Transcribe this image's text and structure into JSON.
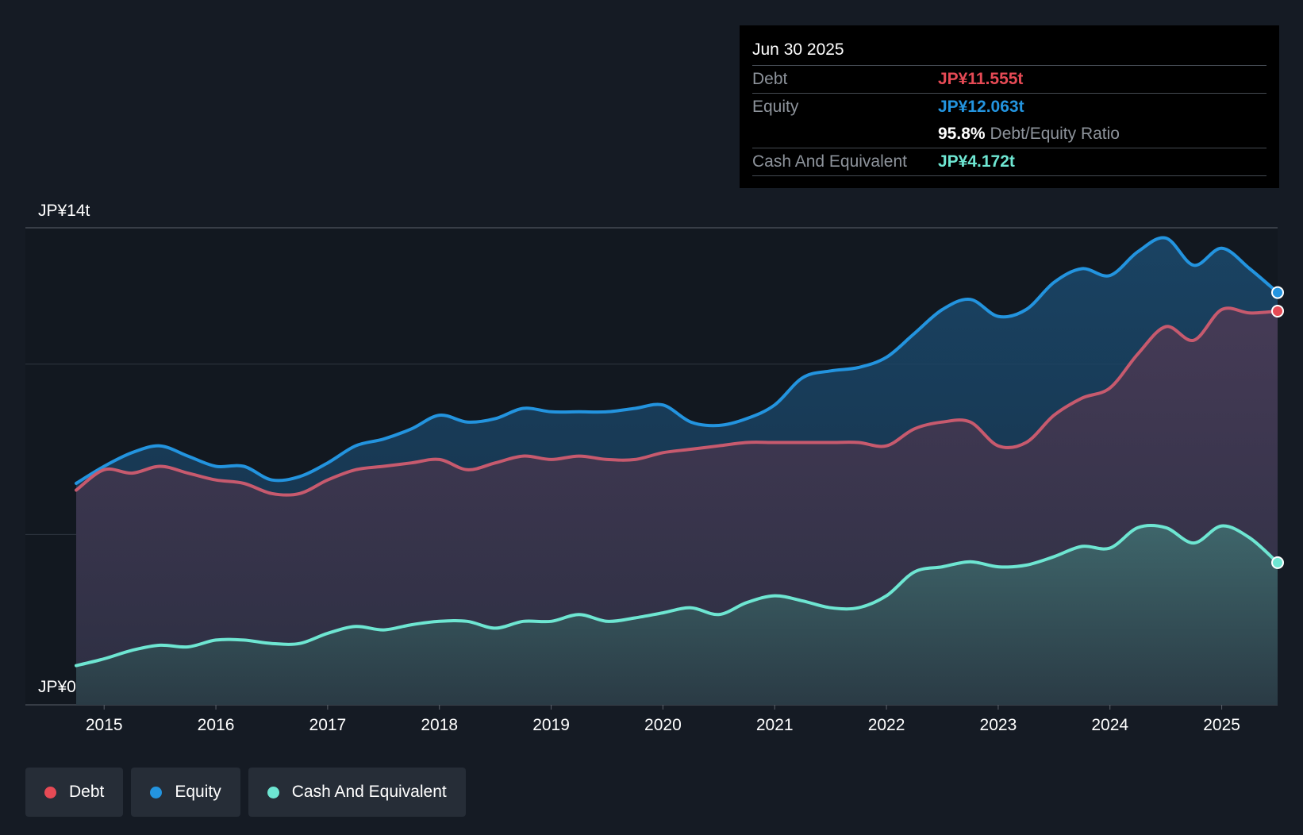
{
  "colors": {
    "background": "#151b24",
    "debt": "#e64a55",
    "equity": "#2394df",
    "cash": "#6ee6d2",
    "muted_text": "#8d939b"
  },
  "tooltip": {
    "date": "Jun 30 2025",
    "debt_label": "Debt",
    "debt_value": "JP¥11.555t",
    "equity_label": "Equity",
    "equity_value": "JP¥12.063t",
    "ratio_value": "95.8%",
    "ratio_label": "Debt/Equity Ratio",
    "cash_label": "Cash And Equivalent",
    "cash_value": "JP¥4.172t"
  },
  "legend": [
    {
      "label": "Debt",
      "color_key": "debt"
    },
    {
      "label": "Equity",
      "color_key": "equity"
    },
    {
      "label": "Cash And Equivalent",
      "color_key": "cash"
    }
  ],
  "chart_data": {
    "type": "area",
    "title": "",
    "xlabel": "",
    "ylabel": "",
    "y_axis_labels": [
      "JP¥14t",
      "JP¥0"
    ],
    "ylim": [
      0,
      14
    ],
    "xlim": [
      2014.75,
      2025.5
    ],
    "x_ticks": [
      2015,
      2016,
      2017,
      2018,
      2019,
      2020,
      2021,
      2022,
      2023,
      2024,
      2025
    ],
    "gridlines": [
      14,
      10,
      5
    ],
    "series": [
      {
        "name": "Equity",
        "color_key": "equity",
        "x": [
          2014.75,
          2015.0,
          2015.25,
          2015.5,
          2015.75,
          2016.0,
          2016.25,
          2016.5,
          2016.75,
          2017.0,
          2017.25,
          2017.5,
          2017.75,
          2018.0,
          2018.25,
          2018.5,
          2018.75,
          2019.0,
          2019.25,
          2019.5,
          2019.75,
          2020.0,
          2020.25,
          2020.5,
          2020.75,
          2021.0,
          2021.25,
          2021.5,
          2021.75,
          2022.0,
          2022.25,
          2022.5,
          2022.75,
          2023.0,
          2023.25,
          2023.5,
          2023.75,
          2024.0,
          2024.25,
          2024.5,
          2024.75,
          2025.0,
          2025.25,
          2025.5
        ],
        "values": [
          6.5,
          7.0,
          7.4,
          7.6,
          7.3,
          7.0,
          7.0,
          6.6,
          6.7,
          7.1,
          7.6,
          7.8,
          8.1,
          8.5,
          8.3,
          8.4,
          8.7,
          8.6,
          8.6,
          8.6,
          8.7,
          8.8,
          8.3,
          8.2,
          8.4,
          8.8,
          9.6,
          9.8,
          9.9,
          10.2,
          10.9,
          11.6,
          11.9,
          11.4,
          11.6,
          12.4,
          12.8,
          12.6,
          13.3,
          13.7,
          12.9,
          13.4,
          12.8,
          12.1
        ]
      },
      {
        "name": "Debt",
        "color_key": "debt",
        "x": [
          2014.75,
          2015.0,
          2015.25,
          2015.5,
          2015.75,
          2016.0,
          2016.25,
          2016.5,
          2016.75,
          2017.0,
          2017.25,
          2017.5,
          2017.75,
          2018.0,
          2018.25,
          2018.5,
          2018.75,
          2019.0,
          2019.25,
          2019.5,
          2019.75,
          2020.0,
          2020.25,
          2020.5,
          2020.75,
          2021.0,
          2021.25,
          2021.5,
          2021.75,
          2022.0,
          2022.25,
          2022.5,
          2022.75,
          2023.0,
          2023.25,
          2023.5,
          2023.75,
          2024.0,
          2024.25,
          2024.5,
          2024.75,
          2025.0,
          2025.25,
          2025.5
        ],
        "values": [
          6.3,
          6.9,
          6.8,
          7.0,
          6.8,
          6.6,
          6.5,
          6.2,
          6.2,
          6.6,
          6.9,
          7.0,
          7.1,
          7.2,
          6.9,
          7.1,
          7.3,
          7.2,
          7.3,
          7.2,
          7.2,
          7.4,
          7.5,
          7.6,
          7.7,
          7.7,
          7.7,
          7.7,
          7.7,
          7.6,
          8.1,
          8.3,
          8.3,
          7.6,
          7.7,
          8.5,
          9.0,
          9.3,
          10.3,
          11.1,
          10.7,
          11.6,
          11.5,
          11.555
        ]
      },
      {
        "name": "Cash And Equivalent",
        "color_key": "cash",
        "x": [
          2014.75,
          2015.0,
          2015.25,
          2015.5,
          2015.75,
          2016.0,
          2016.25,
          2016.5,
          2016.75,
          2017.0,
          2017.25,
          2017.5,
          2017.75,
          2018.0,
          2018.25,
          2018.5,
          2018.75,
          2019.0,
          2019.25,
          2019.5,
          2019.75,
          2020.0,
          2020.25,
          2020.5,
          2020.75,
          2021.0,
          2021.25,
          2021.5,
          2021.75,
          2022.0,
          2022.25,
          2022.5,
          2022.75,
          2023.0,
          2023.25,
          2023.5,
          2023.75,
          2024.0,
          2024.25,
          2024.5,
          2024.75,
          2025.0,
          2025.25,
          2025.5
        ],
        "values": [
          1.15,
          1.35,
          1.6,
          1.75,
          1.7,
          1.9,
          1.9,
          1.8,
          1.8,
          2.1,
          2.3,
          2.2,
          2.35,
          2.45,
          2.45,
          2.25,
          2.45,
          2.45,
          2.65,
          2.45,
          2.55,
          2.7,
          2.85,
          2.65,
          3.0,
          3.2,
          3.05,
          2.85,
          2.85,
          3.2,
          3.9,
          4.05,
          4.2,
          4.05,
          4.1,
          4.35,
          4.65,
          4.6,
          5.2,
          5.2,
          4.75,
          5.25,
          4.9,
          4.172
        ]
      }
    ]
  }
}
